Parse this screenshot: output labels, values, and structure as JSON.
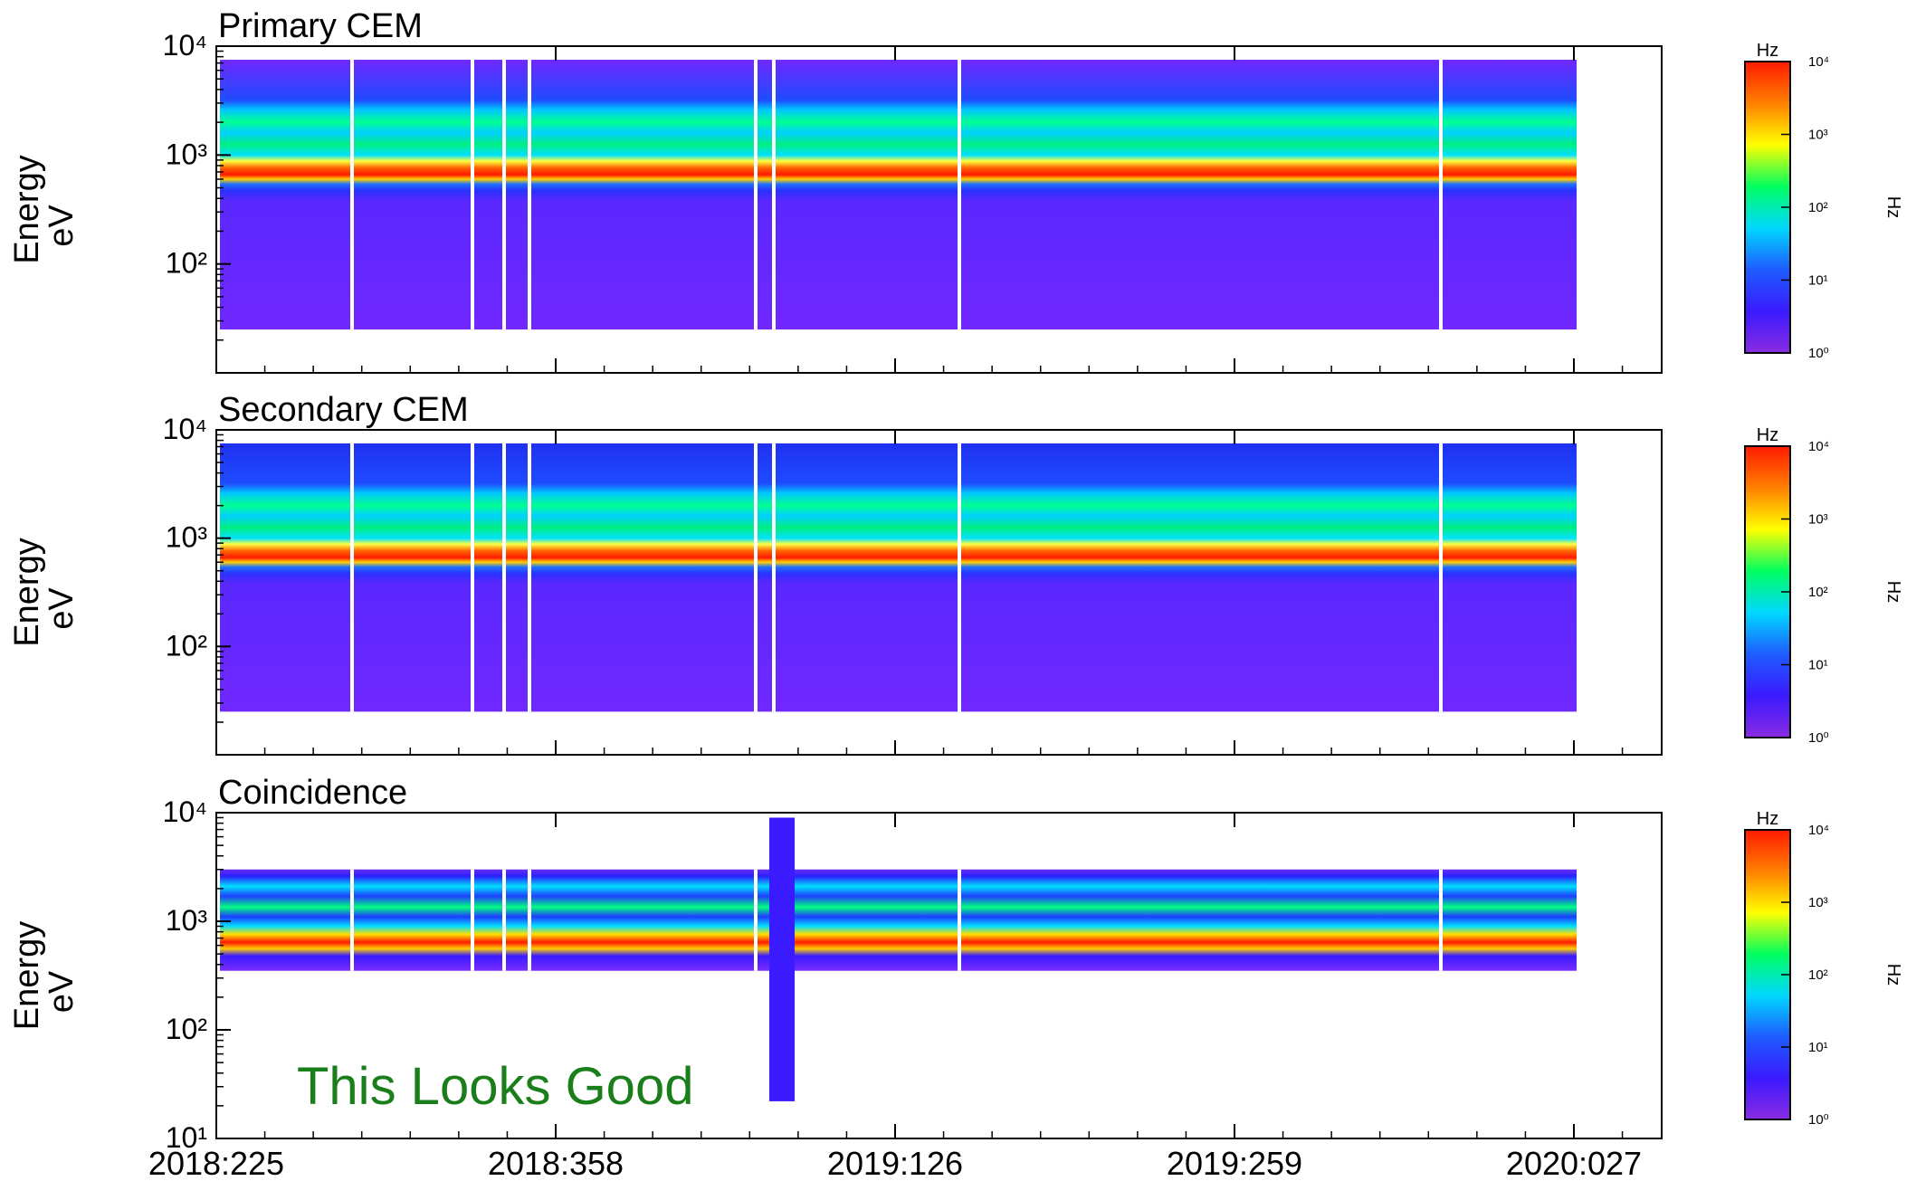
{
  "chart_data": [
    {
      "type": "heatmap",
      "title": "Primary CEM",
      "ylabel": "Energy",
      "yunit": "eV",
      "log_y": true,
      "ylim": [
        10,
        10000
      ],
      "yticks": [
        {
          "value": 100,
          "label": "10²"
        },
        {
          "value": 1000,
          "label": "10³"
        },
        {
          "value": 10000,
          "label": "10⁴"
        }
      ],
      "colorbar": {
        "label": "Hz",
        "side_label": "Hz",
        "zlim": [
          1,
          10000
        ],
        "zticks": [
          {
            "value": 1,
            "label": "10⁰"
          },
          {
            "value": 10,
            "label": "10¹"
          },
          {
            "value": 100,
            "label": "10²"
          },
          {
            "value": 1000,
            "label": "10³"
          },
          {
            "value": 10000,
            "label": "10⁴"
          }
        ]
      }
    },
    {
      "type": "heatmap",
      "title": "Secondary CEM",
      "ylabel": "Energy",
      "yunit": "eV",
      "log_y": true,
      "ylim": [
        10,
        10000
      ],
      "yticks": [
        {
          "value": 100,
          "label": "10²"
        },
        {
          "value": 1000,
          "label": "10³"
        },
        {
          "value": 10000,
          "label": "10⁴"
        }
      ],
      "colorbar": {
        "label": "Hz",
        "side_label": "Hz",
        "zlim": [
          1,
          10000
        ],
        "zticks": [
          {
            "value": 1,
            "label": "10⁰"
          },
          {
            "value": 10,
            "label": "10¹"
          },
          {
            "value": 100,
            "label": "10²"
          },
          {
            "value": 1000,
            "label": "10³"
          },
          {
            "value": 10000,
            "label": "10⁴"
          }
        ]
      }
    },
    {
      "type": "heatmap",
      "title": "Coincidence",
      "ylabel": "Energy",
      "yunit": "eV",
      "log_y": true,
      "ylim": [
        10,
        10000
      ],
      "yticks": [
        {
          "value": 10,
          "label": "10¹"
        },
        {
          "value": 100,
          "label": "10²"
        },
        {
          "value": 1000,
          "label": "10³"
        },
        {
          "value": 10000,
          "label": "10⁴"
        }
      ],
      "xticks": [
        "2018:225",
        "2018:358",
        "2019:126",
        "2019:259",
        "2020:027"
      ],
      "annotation": "This Looks Good",
      "colorbar": {
        "label": "Hz",
        "side_label": "Hz",
        "zlim": [
          1,
          10000
        ],
        "zticks": [
          {
            "value": 1,
            "label": "10⁰"
          },
          {
            "value": 10,
            "label": "10¹"
          },
          {
            "value": 100,
            "label": "10²"
          },
          {
            "value": 1000,
            "label": "10³"
          },
          {
            "value": 10000,
            "label": "10⁴"
          }
        ]
      }
    }
  ]
}
